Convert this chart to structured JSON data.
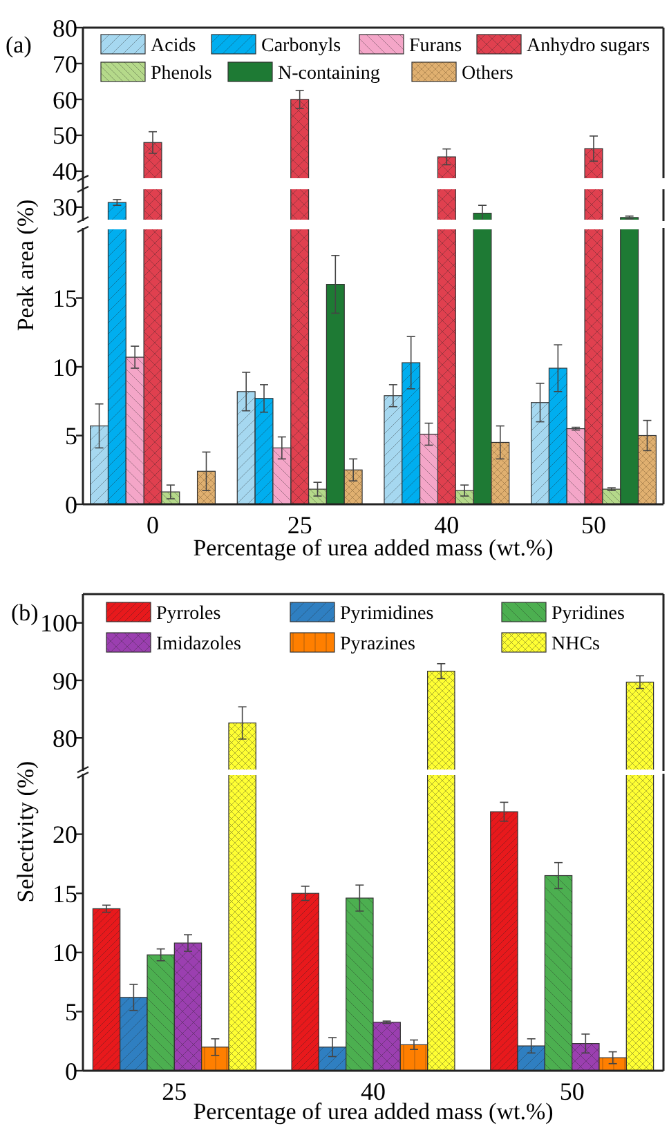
{
  "chart_data": [
    {
      "type": "bar",
      "annotations": [
        "(a)"
      ],
      "categories": [
        null,
        null,
        null,
        null
      ],
      "ylim": [
        26.5,
        80
      ],
      "yticks": [
        30,
        40,
        50,
        60,
        70,
        80
      ],
      "tick_labels": "y",
      "legend": "top",
      "series": [
        {
          "name": "Acids",
          "color": "#a6d8f0",
          "values": [
            null,
            null,
            null,
            null
          ]
        },
        {
          "name": "Carbonyls",
          "color": "#00aeef",
          "values": [
            31.3,
            null,
            null,
            null
          ],
          "errors": [
            0.8,
            null,
            null,
            null
          ]
        },
        {
          "name": "Furans",
          "color": "#f4a6c8",
          "values": [
            null,
            null,
            null,
            null
          ]
        },
        {
          "name": "Anhydro sugars",
          "color": "#e0404f",
          "values": [
            48,
            60,
            44,
            46.3
          ],
          "errors": [
            3,
            2.5,
            2.2,
            3.5
          ]
        },
        {
          "name": "Phenols",
          "color": "#b5d98a",
          "values": [
            null,
            null,
            null,
            null
          ]
        },
        {
          "name": "N-containing",
          "color": "#1e7a34",
          "values": [
            null,
            null,
            28.3,
            27.1
          ],
          "errors": [
            null,
            null,
            2.2,
            0.4
          ]
        },
        {
          "name": "Others",
          "color": "#e0b070",
          "values": [
            null,
            null,
            null,
            null
          ]
        }
      ]
    },
    {
      "type": "bar",
      "xlabel": "Percentage of urea added mass (wt.%)",
      "ylabel": "Peak area (%)",
      "categories": [
        "0",
        "25",
        "40",
        "50"
      ],
      "ylim": [
        0,
        20
      ],
      "yticks": [
        0,
        5,
        10,
        15
      ],
      "series": [
        {
          "color": "#a6d8f0",
          "values": [
            5.7,
            8.2,
            7.9,
            7.4
          ],
          "errors": [
            1.6,
            1.4,
            0.8,
            1.4
          ]
        },
        {
          "color": "#00aeef",
          "values": [
            null,
            7.7,
            10.3,
            9.9
          ],
          "errors": [
            null,
            1.0,
            1.9,
            1.7
          ]
        },
        {
          "color": "#f4a6c8",
          "values": [
            10.7,
            4.1,
            5.1,
            5.5
          ],
          "errors": [
            0.8,
            0.8,
            0.8,
            0.1
          ]
        },
        {
          "color": "#e0404f",
          "values": [
            null,
            null,
            null,
            null
          ]
        },
        {
          "color": "#b5d98a",
          "values": [
            0.9,
            1.1,
            1.0,
            1.1
          ],
          "errors": [
            0.5,
            0.5,
            0.4,
            0.1
          ]
        },
        {
          "color": "#1e7a34",
          "values": [
            null,
            16,
            null,
            null
          ],
          "errors": [
            null,
            2.1,
            null,
            null
          ]
        },
        {
          "color": "#e0b070",
          "values": [
            2.4,
            2.5,
            4.5,
            5.0
          ],
          "errors": [
            1.4,
            0.8,
            1.2,
            1.1
          ]
        }
      ]
    },
    {
      "type": "bar",
      "annotations": [
        "(b)"
      ],
      "categories": [
        null,
        null,
        null
      ],
      "ylim": [
        74.5,
        105
      ],
      "yticks": [
        80,
        90,
        100
      ],
      "tick_labels": "y",
      "legend": "top",
      "series": [
        {
          "name": "Pyrroles",
          "color": "#e8191c",
          "values": [
            null,
            null,
            null
          ]
        },
        {
          "name": "Pyrimidines",
          "color": "#2f7fc1",
          "values": [
            null,
            null,
            null
          ]
        },
        {
          "name": "Pyridines",
          "color": "#4caf50",
          "values": [
            null,
            null,
            null
          ]
        },
        {
          "name": "Imidazoles",
          "color": "#9b3fb0",
          "values": [
            null,
            null,
            null
          ]
        },
        {
          "name": "Pyrazines",
          "color": "#ff7f00",
          "values": [
            null,
            null,
            null
          ]
        },
        {
          "name": "NHCs",
          "color": "#ffff33",
          "values": [
            82.6,
            91.6,
            89.7
          ],
          "errors": [
            2.8,
            1.3,
            1.1
          ]
        }
      ]
    },
    {
      "type": "bar",
      "xlabel": "Percentage of urea added mass (wt.%)",
      "ylabel": "Selectivity (%)",
      "categories": [
        "25",
        "40",
        "50"
      ],
      "ylim": [
        0,
        25
      ],
      "yticks": [
        0,
        5,
        10,
        15,
        20
      ],
      "series": [
        {
          "color": "#e8191c",
          "values": [
            13.7,
            15.0,
            21.9
          ],
          "errors": [
            0.3,
            0.6,
            0.8
          ]
        },
        {
          "color": "#2f7fc1",
          "values": [
            6.2,
            2.0,
            2.1
          ],
          "errors": [
            1.1,
            0.8,
            0.6
          ]
        },
        {
          "color": "#4caf50",
          "values": [
            9.8,
            14.6,
            16.5
          ],
          "errors": [
            0.5,
            1.1,
            1.1
          ]
        },
        {
          "color": "#9b3fb0",
          "values": [
            10.8,
            4.1,
            2.3
          ],
          "errors": [
            0.7,
            0.1,
            0.8
          ]
        },
        {
          "color": "#ff7f00",
          "values": [
            2.0,
            2.2,
            1.1
          ],
          "errors": [
            0.7,
            0.4,
            0.5
          ]
        },
        {
          "color": "#ffff33",
          "values": [
            null,
            null,
            null
          ]
        }
      ]
    }
  ]
}
